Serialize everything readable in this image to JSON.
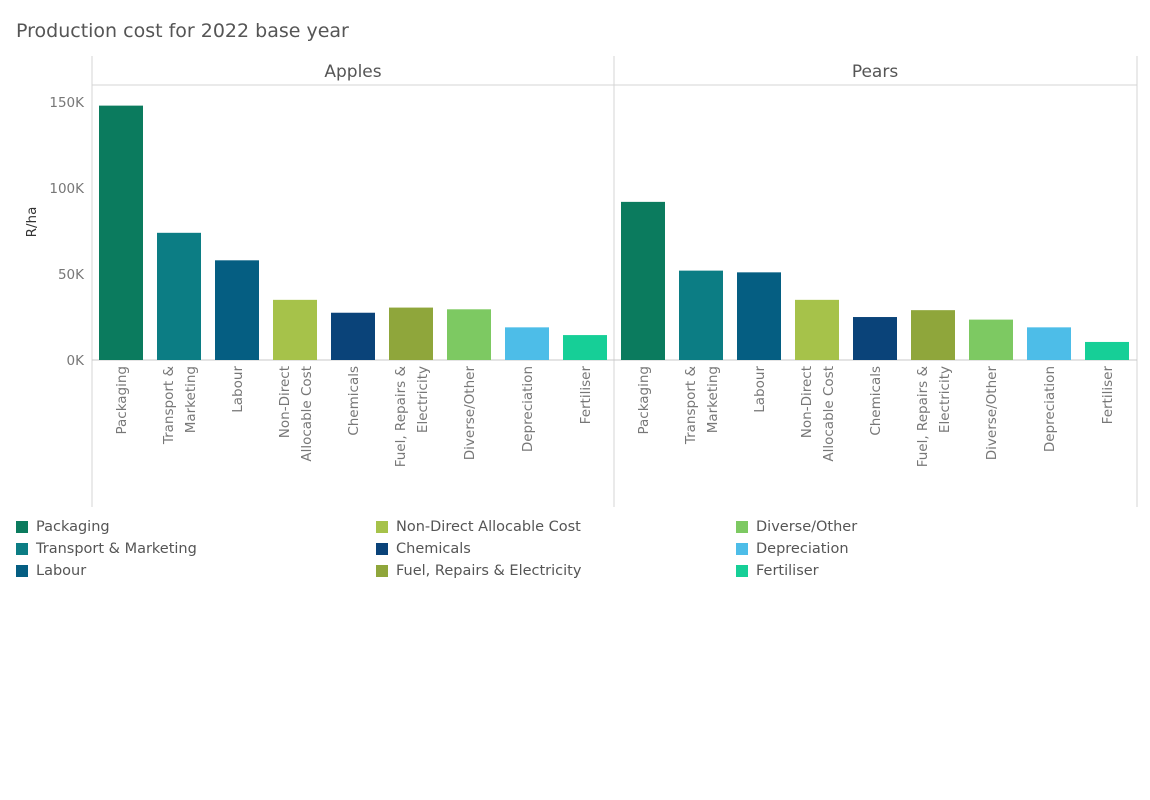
{
  "chart_data": {
    "type": "bar",
    "title": "Production cost for 2022 base year",
    "ylabel": "R/ha",
    "xlabel": "",
    "ylim": [
      0,
      160000
    ],
    "yticks": [
      0,
      50000,
      100000,
      150000
    ],
    "ytick_labels": [
      "0K",
      "50K",
      "100K",
      "150K"
    ],
    "categories": [
      "Packaging",
      "Transport & Marketing",
      "Labour",
      "Non-Direct Allocable Cost",
      "Chemicals",
      "Fuel, Repairs & Electricity",
      "Diverse/Other",
      "Depreciation",
      "Fertiliser"
    ],
    "category_lines": [
      [
        "Packaging"
      ],
      [
        "Transport &",
        "Marketing"
      ],
      [
        "Labour"
      ],
      [
        "Non-Direct",
        "Allocable Cost"
      ],
      [
        "Chemicals"
      ],
      [
        "Fuel, Repairs &",
        "Electricity"
      ],
      [
        "Diverse/Other"
      ],
      [
        "Depreciation"
      ],
      [
        "Fertiliser"
      ]
    ],
    "colors": [
      "#0b7b5e",
      "#0c7d84",
      "#055e82",
      "#a6c24a",
      "#0a4379",
      "#8fa63b",
      "#7dc962",
      "#4dbde8",
      "#16cf97"
    ],
    "panels": [
      {
        "name": "Apples",
        "values": [
          148000,
          74000,
          58000,
          35000,
          27500,
          30500,
          29500,
          19000,
          14500
        ]
      },
      {
        "name": "Pears",
        "values": [
          92000,
          52000,
          51000,
          35000,
          25000,
          29000,
          23500,
          19000,
          10500
        ]
      }
    ],
    "legend": [
      "Packaging",
      "Transport & Marketing",
      "Labour",
      "Non-Direct Allocable Cost",
      "Chemicals",
      "Fuel, Repairs & Electricity",
      "Diverse/Other",
      "Depreciation",
      "Fertiliser"
    ]
  }
}
